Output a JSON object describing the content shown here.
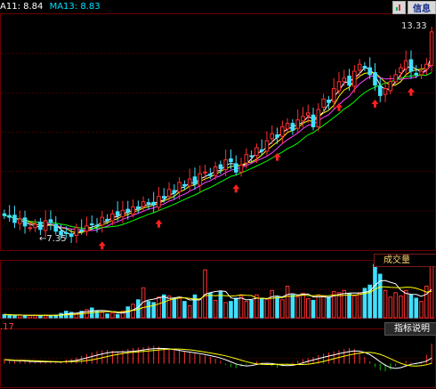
{
  "ma_legend": [
    {
      "label": "A11: 8.84",
      "color": "#ffffff"
    },
    {
      "label": "MA13: 8.83",
      "color": "#00e0ff"
    }
  ],
  "toolbar": {
    "icon": "stock-icon",
    "info_label": "信息"
  },
  "price": {
    "max_label": "13.33",
    "min_label": "7.35"
  },
  "volume_panel": {
    "title": "成交量"
  },
  "indicator_panel": {
    "value_label": ".17",
    "title": "指标说明"
  },
  "colors": {
    "up": "#ff3030",
    "down": "#40e0ff",
    "ma_fast": "#ffffff",
    "ma_mid": "#ffff00",
    "ma_slow": "#ff40ff",
    "ma_slowest": "#00ff00",
    "grid": "#6b0000",
    "arrow": "#ff2020",
    "macd_neg": "#00c000"
  },
  "chart_data": {
    "type": "candlestick",
    "count": 84,
    "close": [
      8.05,
      8.0,
      7.85,
      7.95,
      7.75,
      7.7,
      7.8,
      7.65,
      7.9,
      7.85,
      7.6,
      7.5,
      7.55,
      7.45,
      7.7,
      7.6,
      7.75,
      7.8,
      7.75,
      8.0,
      7.9,
      8.1,
      8.05,
      8.2,
      8.15,
      8.3,
      8.25,
      8.45,
      8.4,
      8.35,
      8.6,
      8.55,
      8.8,
      8.7,
      9.0,
      8.9,
      9.1,
      8.95,
      9.25,
      9.3,
      9.2,
      9.45,
      9.4,
      9.65,
      9.6,
      9.3,
      9.5,
      9.8,
      9.75,
      10.0,
      9.9,
      10.2,
      10.4,
      10.3,
      10.6,
      10.7,
      10.5,
      10.8,
      10.9,
      11.0,
      10.6,
      11.1,
      11.4,
      11.3,
      11.7,
      11.9,
      12.0,
      11.8,
      12.2,
      12.4,
      12.3,
      12.1,
      11.8,
      11.5,
      11.7,
      11.9,
      12.1,
      12.3,
      12.5,
      12.2,
      12.1,
      12.2,
      12.4,
      13.33
    ],
    "volume": [
      0.06,
      0.05,
      0.04,
      0.05,
      0.04,
      0.04,
      0.05,
      0.04,
      0.05,
      0.04,
      0.05,
      0.08,
      0.12,
      0.1,
      0.08,
      0.12,
      0.15,
      0.18,
      0.13,
      0.1,
      0.07,
      0.09,
      0.06,
      0.12,
      0.2,
      0.25,
      0.33,
      0.55,
      0.3,
      0.28,
      0.38,
      0.42,
      0.4,
      0.35,
      0.36,
      0.3,
      0.22,
      0.42,
      0.34,
      0.88,
      0.45,
      0.32,
      0.48,
      0.28,
      0.3,
      0.36,
      0.4,
      0.3,
      0.32,
      0.42,
      0.36,
      0.34,
      0.5,
      0.38,
      0.33,
      0.58,
      0.42,
      0.38,
      0.45,
      0.35,
      0.32,
      0.42,
      0.4,
      0.38,
      0.48,
      0.46,
      0.5,
      0.44,
      0.4,
      0.46,
      0.54,
      0.6,
      0.98,
      0.8,
      0.5,
      0.38,
      0.46,
      0.4,
      0.5,
      0.42,
      0.36,
      0.3,
      0.58,
      0.95
    ],
    "macd": [
      0.2,
      0.15,
      0.1,
      0.12,
      0.1,
      0.08,
      0.1,
      0.06,
      0.1,
      0.12,
      0.05,
      0.08,
      0.18,
      0.22,
      0.28,
      0.35,
      0.42,
      0.5,
      0.56,
      0.6,
      0.62,
      0.58,
      0.55,
      0.6,
      0.66,
      0.7,
      0.72,
      0.74,
      0.78,
      0.8,
      0.76,
      0.7,
      0.66,
      0.6,
      0.58,
      0.55,
      0.5,
      0.45,
      0.4,
      0.36,
      0.3,
      0.22,
      0.12,
      -0.05,
      -0.15,
      -0.2,
      -0.12,
      -0.05,
      0.05,
      0.1,
      0.05,
      -0.05,
      -0.12,
      -0.18,
      -0.12,
      -0.05,
      0.05,
      0.12,
      0.2,
      0.25,
      0.3,
      0.38,
      0.45,
      0.5,
      0.55,
      0.6,
      0.65,
      0.7,
      0.66,
      0.5,
      0.3,
      0.1,
      -0.15,
      -0.3,
      -0.35,
      -0.28,
      -0.12,
      0.05,
      0.12,
      0.05,
      -0.05,
      0.1,
      0.4,
      0.9
    ],
    "buy_signal_bars": [
      21,
      32,
      49,
      57,
      71,
      78,
      86
    ]
  }
}
